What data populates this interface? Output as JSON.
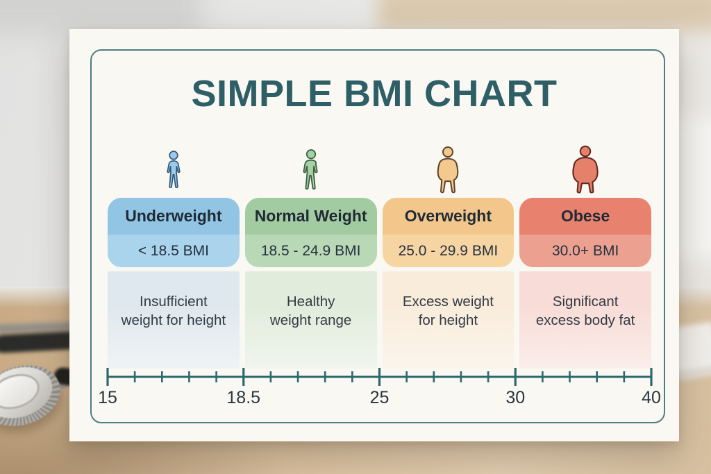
{
  "title": "SIMPLE BMI CHART",
  "columns": [
    {
      "name": "Underweight",
      "range": "< 18.5 BMI",
      "description_lines": [
        "Insufficient",
        "weight for height"
      ],
      "icon": "underweight-person-icon",
      "colors": {
        "header": "#92c4e3",
        "band": "#aad3ec",
        "panel": "#dfe8ee",
        "icon_fill": "#9ccbe9",
        "icon_stroke": "#2f567a"
      }
    },
    {
      "name": "Normal Weight",
      "range": "18.5 - 24.9 BMI",
      "description_lines": [
        "Healthy",
        "weight range"
      ],
      "icon": "normal-weight-person-icon",
      "colors": {
        "header": "#a3cba1",
        "band": "#b9d8b5",
        "panel": "#e1ecdc",
        "icon_fill": "#a7d0a3",
        "icon_stroke": "#3a5f41"
      }
    },
    {
      "name": "Overweight",
      "range": "25.0 - 29.9 BMI",
      "description_lines": [
        "Excess weight",
        "for height"
      ],
      "icon": "overweight-person-icon",
      "colors": {
        "header": "#f3c78b",
        "band": "#f6d5a3",
        "panel": "#f9ecdb",
        "icon_fill": "#f3c98f",
        "icon_stroke": "#5d4426"
      }
    },
    {
      "name": "Obese",
      "range": "30.0+ BMI",
      "description_lines": [
        "Significant",
        "excess body fat"
      ],
      "icon": "obese-person-icon",
      "colors": {
        "header": "#e8826e",
        "band": "#eca08f",
        "panel": "#f8dcd7",
        "icon_fill": "#e5806b",
        "icon_stroke": "#63281f"
      }
    }
  ],
  "chart_data": {
    "type": "table",
    "title": "SIMPLE BMI CHART",
    "categories": [
      "Underweight",
      "Normal Weight",
      "Overweight",
      "Obese"
    ],
    "bmi_ranges": [
      "< 18.5 BMI",
      "18.5 - 24.9 BMI",
      "25.0 - 29.9 BMI",
      "30.0+ BMI"
    ],
    "descriptions": [
      "Insufficient weight for height",
      "Healthy weight range",
      "Excess weight for height",
      "Significant excess body fat"
    ],
    "axis": {
      "min": 15,
      "max": 40,
      "tick_labels": [
        "15",
        "18.5",
        "25",
        "30",
        "40"
      ],
      "minor_ticks_between_majors": 4,
      "tick_color": "#2c696d",
      "label_color": "#2a363f"
    }
  }
}
